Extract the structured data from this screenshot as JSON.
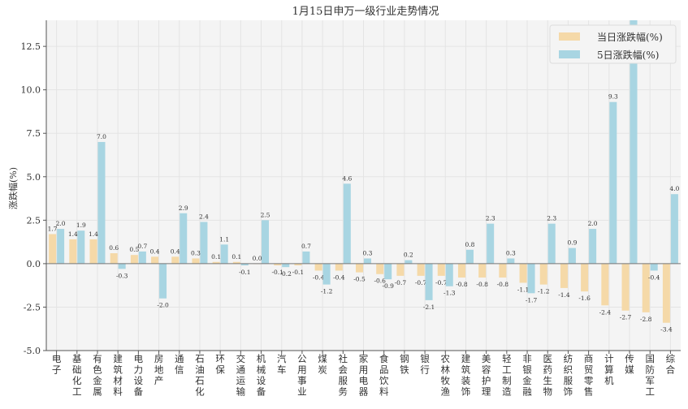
{
  "chart_data": {
    "type": "bar",
    "title": "1月15日申万一级行业走势情况",
    "xlabel": "",
    "ylabel": "涨跌幅(%)",
    "ylim": [
      -5.0,
      14.0
    ],
    "yticks": [
      "-5.0",
      "-2.5",
      "0.0",
      "2.5",
      "5.0",
      "7.5",
      "10.0",
      "12.5"
    ],
    "grid": true,
    "legend_position": "top-right",
    "categories": [
      "电子",
      "基础化工",
      "有色金属",
      "建筑材料",
      "电力设备",
      "房地产",
      "通信",
      "石油石化",
      "环保",
      "交通运输",
      "机械设备",
      "汽车",
      "公用事业",
      "煤炭",
      "社会服务",
      "家用电器",
      "食品饮料",
      "钢铁",
      "银行",
      "农林牧渔",
      "建筑装饰",
      "美容护理",
      "轻工制造",
      "非银金融",
      "医药生物",
      "纺织服饰",
      "商贸零售",
      "计算机",
      "传媒",
      "国防军工",
      "综合"
    ],
    "series": [
      {
        "name": "当日涨跌幅(%)",
        "color": "#f5d9a8",
        "values": [
          1.7,
          1.4,
          1.4,
          0.6,
          0.5,
          0.4,
          0.4,
          0.3,
          0.1,
          0.1,
          0.0,
          -0.1,
          -0.1,
          -0.4,
          -0.4,
          -0.5,
          -0.6,
          -0.7,
          -0.7,
          -0.7,
          -0.8,
          -0.8,
          -0.8,
          -1.1,
          -1.2,
          -1.4,
          -1.6,
          -2.4,
          -2.7,
          -2.8,
          -3.4
        ]
      },
      {
        "name": "5日涨跌幅(%)",
        "color": "#a8d5e2",
        "values": [
          2.0,
          1.9,
          7.0,
          -0.3,
          0.7,
          -2.0,
          2.9,
          2.4,
          1.1,
          -0.1,
          2.5,
          -0.2,
          0.7,
          -1.2,
          4.6,
          0.3,
          -0.9,
          0.2,
          -2.1,
          -1.3,
          0.8,
          2.3,
          0.3,
          -1.7,
          2.3,
          0.9,
          2.0,
          9.3,
          14.5,
          -0.4,
          4.0
        ]
      }
    ]
  }
}
